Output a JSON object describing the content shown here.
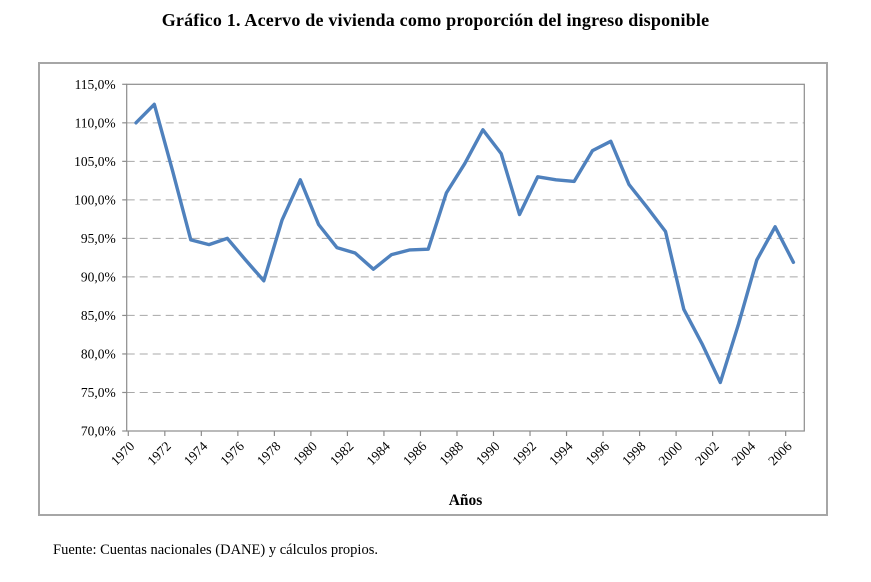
{
  "page": {
    "title": "Gráfico 1. Acervo de vivienda como proporción del ingreso disponible",
    "source_note": "Fuente: Cuentas nacionales (DANE) y cálculos propios."
  },
  "chart_data": {
    "type": "line",
    "title": "Gráfico 1. Acervo de vivienda como proporción del ingreso disponible",
    "xlabel": "Años",
    "ylabel": "",
    "ylim": [
      70,
      115
    ],
    "y_tick_step": 5,
    "grid": "horizontal-dashed",
    "legend": "none",
    "line_color": "#4f81bd",
    "axis_color": "#8c8c8c",
    "grid_color": "#a8a8a8",
    "years": [
      1970,
      1971,
      1972,
      1973,
      1974,
      1975,
      1976,
      1977,
      1978,
      1979,
      1980,
      1981,
      1982,
      1983,
      1984,
      1985,
      1986,
      1987,
      1988,
      1989,
      1990,
      1991,
      1992,
      1993,
      1994,
      1995,
      1996,
      1997,
      1998,
      1999,
      2000,
      2001,
      2002,
      2003,
      2004,
      2005,
      2006
    ],
    "values": [
      110.0,
      112.4,
      103.8,
      94.8,
      94.2,
      95.0,
      92.2,
      89.5,
      97.4,
      102.6,
      96.8,
      93.8,
      93.1,
      91.0,
      92.9,
      93.5,
      93.6,
      100.9,
      104.7,
      109.1,
      106.0,
      98.1,
      103.0,
      102.6,
      102.4,
      106.4,
      107.6,
      102.0,
      99.0,
      95.9,
      85.8,
      81.3,
      76.3,
      83.9,
      92.2,
      96.5,
      91.9
    ],
    "y_ticks": [
      {
        "value": 115,
        "label": "115,0%"
      },
      {
        "value": 110,
        "label": "110,0%"
      },
      {
        "value": 105,
        "label": "105,0%"
      },
      {
        "value": 100,
        "label": "100,0%"
      },
      {
        "value": 95,
        "label": "95,0%"
      },
      {
        "value": 90,
        "label": "90,0%"
      },
      {
        "value": 85,
        "label": "85,0%"
      },
      {
        "value": 80,
        "label": "80,0%"
      },
      {
        "value": 75,
        "label": "75,0%"
      },
      {
        "value": 70,
        "label": "70,0%"
      }
    ],
    "x_tick_labels": [
      "1970",
      "1972",
      "1974",
      "1976",
      "1978",
      "1980",
      "1982",
      "1984",
      "1986",
      "1988",
      "1990",
      "1992",
      "1994",
      "1996",
      "1998",
      "2000",
      "2002",
      "2004",
      "2006"
    ]
  }
}
